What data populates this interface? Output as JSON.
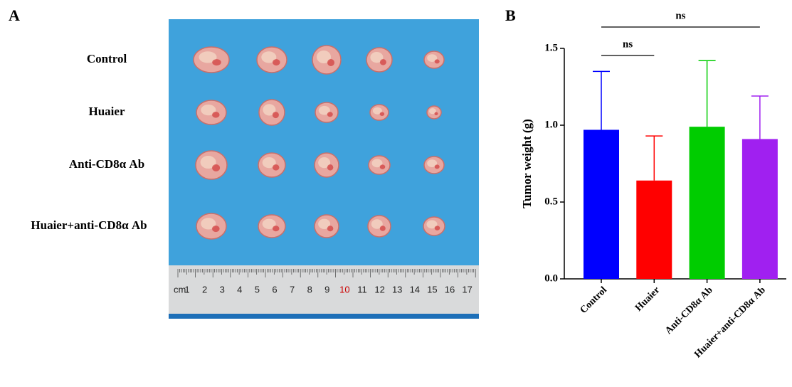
{
  "panel_a": {
    "label": "A",
    "groups": [
      "Control",
      "Huaier",
      "Anti-CD8α Ab",
      "Huaier+anti-CD8α Ab"
    ],
    "ruler": {
      "unit": "cm",
      "numbers": [
        "1",
        "2",
        "3",
        "4",
        "5",
        "6",
        "7",
        "8",
        "9",
        "10",
        "11",
        "12",
        "13",
        "14",
        "15",
        "16",
        "17"
      ]
    }
  },
  "chart_data": {
    "type": "bar",
    "panel_label": "B",
    "ylabel": "Tumor weight (g)",
    "categories": [
      "Control",
      "Huaier",
      "Anti-CD8α Ab",
      "Huaier+anti-CD8α Ab"
    ],
    "values": [
      0.97,
      0.64,
      0.99,
      0.91
    ],
    "errors": [
      0.38,
      0.29,
      0.43,
      0.28
    ],
    "colors": [
      "#0000ff",
      "#ff0000",
      "#00cc00",
      "#a020f0"
    ],
    "ylim": [
      0,
      1.5
    ],
    "yticks": [
      {
        "value": 0,
        "label": "0.0"
      },
      {
        "value": 0.5,
        "label": "0.5"
      },
      {
        "value": 1,
        "label": "1.0"
      },
      {
        "value": 1.5,
        "label": "1.5"
      }
    ],
    "grid": false,
    "annotations": [
      {
        "text": "ns",
        "between": [
          "Control",
          "Huaier"
        ]
      },
      {
        "text": "ns",
        "between": [
          "Control",
          "Huaier+anti-CD8α Ab"
        ]
      }
    ]
  }
}
